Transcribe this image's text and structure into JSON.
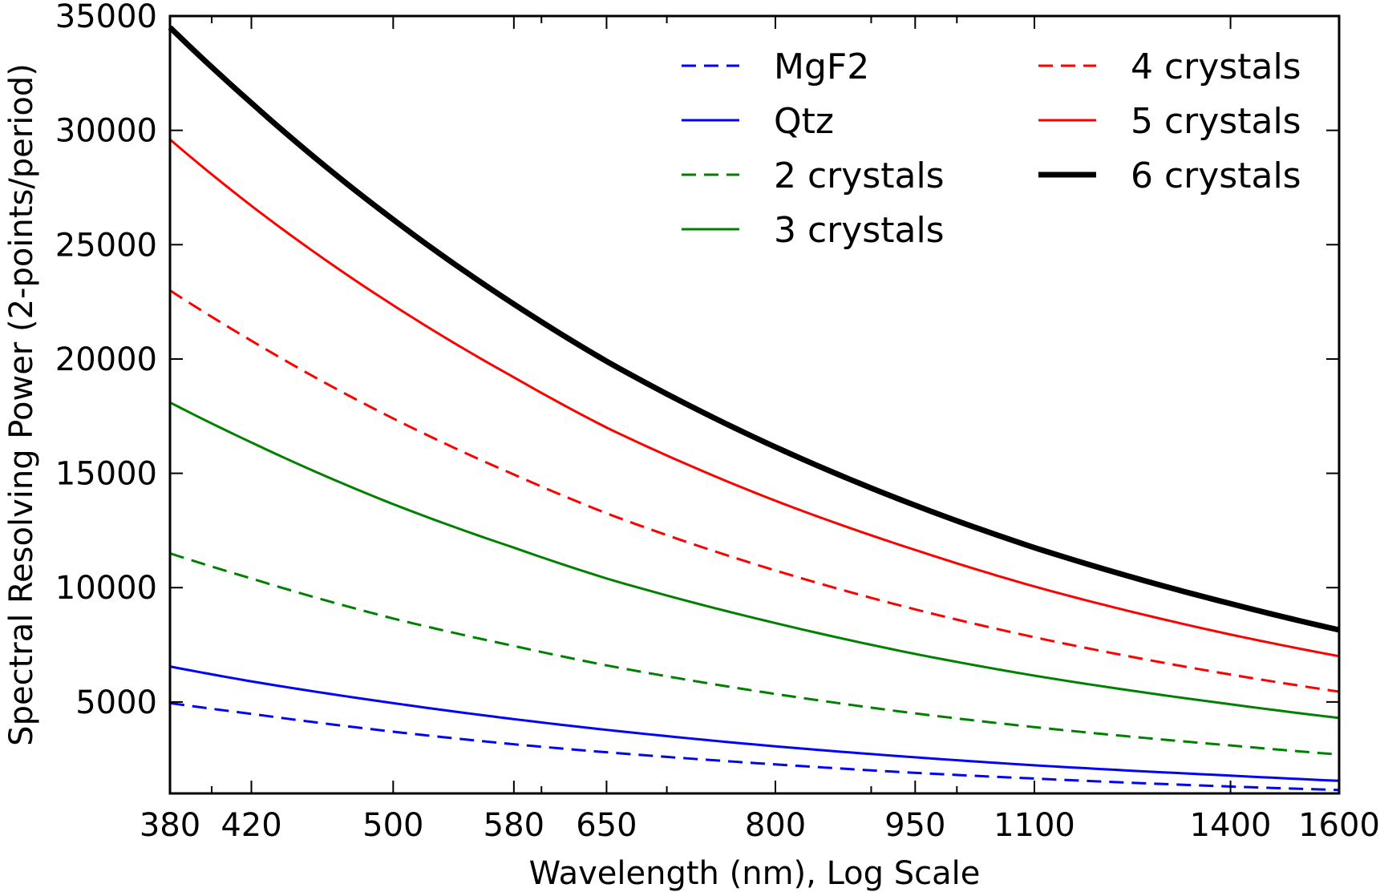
{
  "chart_data": {
    "type": "line",
    "title": "",
    "xlabel": "Wavelength (nm),  Log Scale",
    "ylabel": "Spectral Resolving Power (2-points/period)",
    "xscale": "log",
    "xlim": [
      380,
      1600
    ],
    "ylim": [
      1000,
      35000
    ],
    "xticks": [
      380,
      420,
      500,
      580,
      650,
      800,
      950,
      1100,
      1400,
      1600
    ],
    "xtick_labels": [
      "380",
      "420",
      "500",
      "580",
      "650",
      "800",
      "950",
      "1100",
      "1400",
      "1600"
    ],
    "xminor_ticks": [
      400,
      600,
      700,
      900,
      1000
    ],
    "yticks": [
      5000,
      10000,
      15000,
      20000,
      25000,
      30000,
      35000
    ],
    "ytick_labels": [
      "5000",
      "10000",
      "15000",
      "20000",
      "25000",
      "30000",
      "35000"
    ],
    "grid": false,
    "legend_position": "top-right",
    "legend_columns": 2,
    "x": [
      380,
      420,
      500,
      580,
      650,
      800,
      950,
      1100,
      1400,
      1600
    ],
    "series": [
      {
        "name": "MgF2",
        "color": "#0000ff",
        "style": "dashed",
        "width": 3,
        "values": [
          4950,
          4480,
          3700,
          3150,
          2800,
          2270,
          1900,
          1650,
          1300,
          1150
        ]
      },
      {
        "name": "Qtz",
        "color": "#0000ff",
        "style": "solid",
        "width": 3,
        "values": [
          6550,
          5900,
          4950,
          4250,
          3780,
          3060,
          2580,
          2230,
          1780,
          1550
        ]
      },
      {
        "name": "2 crystals",
        "color": "#008000",
        "style": "dashed",
        "width": 3,
        "values": [
          11500,
          10400,
          8650,
          7450,
          6600,
          5350,
          4500,
          3900,
          3100,
          2700
        ]
      },
      {
        "name": "3 crystals",
        "color": "#008000",
        "style": "solid",
        "width": 3,
        "values": [
          18100,
          16350,
          13650,
          11750,
          10400,
          8450,
          7100,
          6150,
          4900,
          4300
        ]
      },
      {
        "name": "4 crystals",
        "color": "#ff0000",
        "style": "dashed",
        "width": 3,
        "values": [
          23000,
          20800,
          17400,
          14950,
          13250,
          10750,
          9050,
          7830,
          6200,
          5450
        ]
      },
      {
        "name": "5 crystals",
        "color": "#ff0000",
        "style": "solid",
        "width": 3,
        "values": [
          29600,
          26700,
          22350,
          19200,
          17000,
          13800,
          11650,
          10050,
          7950,
          7000
        ]
      },
      {
        "name": "6 crystals",
        "color": "#000000",
        "style": "solid",
        "width": 7,
        "values": [
          34500,
          31200,
          26100,
          22400,
          19900,
          16150,
          13600,
          11750,
          9300,
          8150
        ]
      }
    ]
  }
}
